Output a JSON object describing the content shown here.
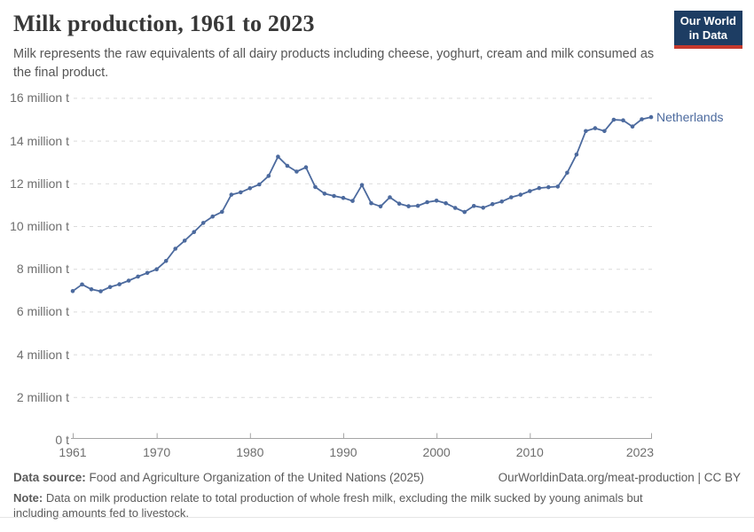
{
  "header": {
    "title": "Milk production, 1961 to 2023",
    "subtitle": "Milk represents the raw equivalents of all dairy products including cheese, yoghurt, cream and milk consumed as the final product.",
    "logo": {
      "line1": "Our World",
      "line2": "in Data"
    }
  },
  "chart_data": {
    "type": "line",
    "title": "Milk production, 1961 to 2023",
    "unit": "million t",
    "grid": "horizontal dashed",
    "legend_position": "end-of-line label",
    "ylim": [
      0,
      16
    ],
    "xlim": [
      1961,
      2023
    ],
    "x_ticks": [
      1961,
      1970,
      1980,
      1990,
      2000,
      2010,
      2023
    ],
    "y_ticks": [
      {
        "v": 0,
        "label": "0 t"
      },
      {
        "v": 2,
        "label": "2 million t"
      },
      {
        "v": 4,
        "label": "4 million t"
      },
      {
        "v": 6,
        "label": "6 million t"
      },
      {
        "v": 8,
        "label": "8 million t"
      },
      {
        "v": 10,
        "label": "10 million t"
      },
      {
        "v": 12,
        "label": "12 million t"
      },
      {
        "v": 14,
        "label": "14 million t"
      },
      {
        "v": 16,
        "label": "16 million t"
      }
    ],
    "x": [
      1961,
      1962,
      1963,
      1964,
      1965,
      1966,
      1967,
      1968,
      1969,
      1970,
      1971,
      1972,
      1973,
      1974,
      1975,
      1976,
      1977,
      1978,
      1979,
      1980,
      1981,
      1982,
      1983,
      1984,
      1985,
      1986,
      1987,
      1988,
      1989,
      1990,
      1991,
      1992,
      1993,
      1994,
      1995,
      1996,
      1997,
      1998,
      1999,
      2000,
      2001,
      2002,
      2003,
      2004,
      2005,
      2006,
      2007,
      2008,
      2009,
      2010,
      2011,
      2012,
      2013,
      2014,
      2015,
      2016,
      2017,
      2018,
      2019,
      2020,
      2021,
      2022,
      2023
    ],
    "series": [
      {
        "name": "Netherlands",
        "color": "#4c6a9e",
        "values": [
          6.96,
          7.27,
          7.04,
          6.95,
          7.15,
          7.28,
          7.45,
          7.64,
          7.81,
          7.98,
          8.37,
          8.94,
          9.32,
          9.72,
          10.15,
          10.45,
          10.67,
          11.47,
          11.58,
          11.77,
          11.95,
          12.35,
          13.25,
          12.82,
          12.55,
          12.75,
          11.83,
          11.52,
          11.41,
          11.32,
          11.18,
          11.92,
          11.07,
          10.92,
          11.35,
          11.05,
          10.93,
          10.95,
          11.12,
          11.19,
          11.07,
          10.85,
          10.66,
          10.94,
          10.86,
          11.03,
          11.15,
          11.35,
          11.47,
          11.64,
          11.78,
          11.82,
          11.85,
          12.5,
          13.35,
          14.45,
          14.58,
          14.45,
          14.98,
          14.95,
          14.66,
          15.0,
          15.1
        ]
      }
    ]
  },
  "colors": {
    "grid": "#dadada",
    "axis": "#a5a5a5",
    "tick_text": "#6e6e6e",
    "accent_line": "#4c6a9e",
    "logo_navy": "#1d3d63",
    "logo_red": "#c5392d"
  },
  "footer": {
    "source_label": "Data source:",
    "source_text": "Food and Agriculture Organization of the United Nations (2025)",
    "citation": "OurWorldinData.org/meat-production | CC BY",
    "note_label": "Note:",
    "note_text": "Data on milk production relate to total production of whole fresh milk, excluding the milk sucked by young animals but including amounts fed to livestock."
  }
}
